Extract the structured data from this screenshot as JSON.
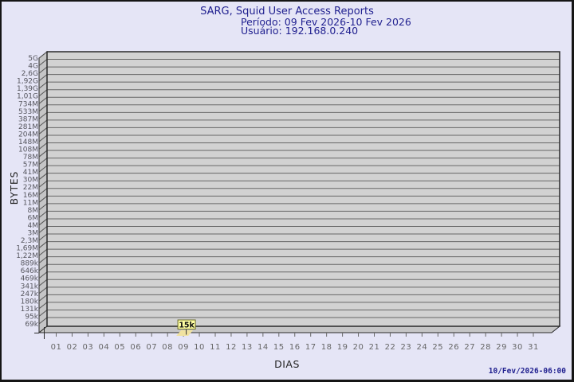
{
  "page": {
    "title": "SARG, Squid User Access Reports",
    "subtitle_period": "Período: 09 Fev 2026-10 Fev 2026",
    "subtitle_user": "Usuário: 192.168.0.240",
    "footer_timestamp": "10/Fev/2026-06:00"
  },
  "chart_data": {
    "type": "bar",
    "scale_y": "log",
    "title": "SARG, Squid User Access Reports",
    "xlabel": "DIAS",
    "ylabel": "BYTES",
    "x_categories": [
      "01",
      "02",
      "03",
      "04",
      "05",
      "06",
      "07",
      "08",
      "09",
      "10",
      "11",
      "12",
      "13",
      "14",
      "15",
      "16",
      "17",
      "18",
      "19",
      "20",
      "21",
      "22",
      "23",
      "24",
      "25",
      "26",
      "27",
      "28",
      "29",
      "30",
      "31"
    ],
    "y_tick_labels": [
      "5G",
      "4G",
      "2,6G",
      "1,92G",
      "1,39G",
      "1,01G",
      "734M",
      "533M",
      "387M",
      "281M",
      "204M",
      "148M",
      "108M",
      "78M",
      "57M",
      "41M",
      "30M",
      "22M",
      "16M",
      "11M",
      "8M",
      "6M",
      "4M",
      "3M",
      "2,3M",
      "1,69M",
      "1,22M",
      "889k",
      "646k",
      "469k",
      "341k",
      "247k",
      "180k",
      "131k",
      "95k",
      "69k"
    ],
    "series": [
      {
        "name": "192.168.0.240",
        "values": [
          null,
          null,
          null,
          null,
          null,
          null,
          null,
          null,
          15000,
          null,
          null,
          null,
          null,
          null,
          null,
          null,
          null,
          null,
          null,
          null,
          null,
          null,
          null,
          null,
          null,
          null,
          null,
          null,
          null,
          null,
          null
        ]
      }
    ],
    "annotation": {
      "day": "09",
      "label": "15k"
    },
    "legend_position": "none",
    "grid": "horizontal"
  },
  "colors": {
    "background": "#e5e5f6",
    "plot_fill": "#d2d2d2",
    "wall_fill": "#c5c5c6",
    "grid": "#676767",
    "grid_dark": "#555555",
    "edge": "#2a2a2a",
    "tick_text": "#56565e",
    "day_text": "#666666",
    "title_text": "#1f1f8f",
    "bar_fill": "#f0e2a0",
    "annotation_fill": "#ffffa2",
    "annotation_border": "#6b6b2a",
    "annotation_text": "#111111"
  }
}
